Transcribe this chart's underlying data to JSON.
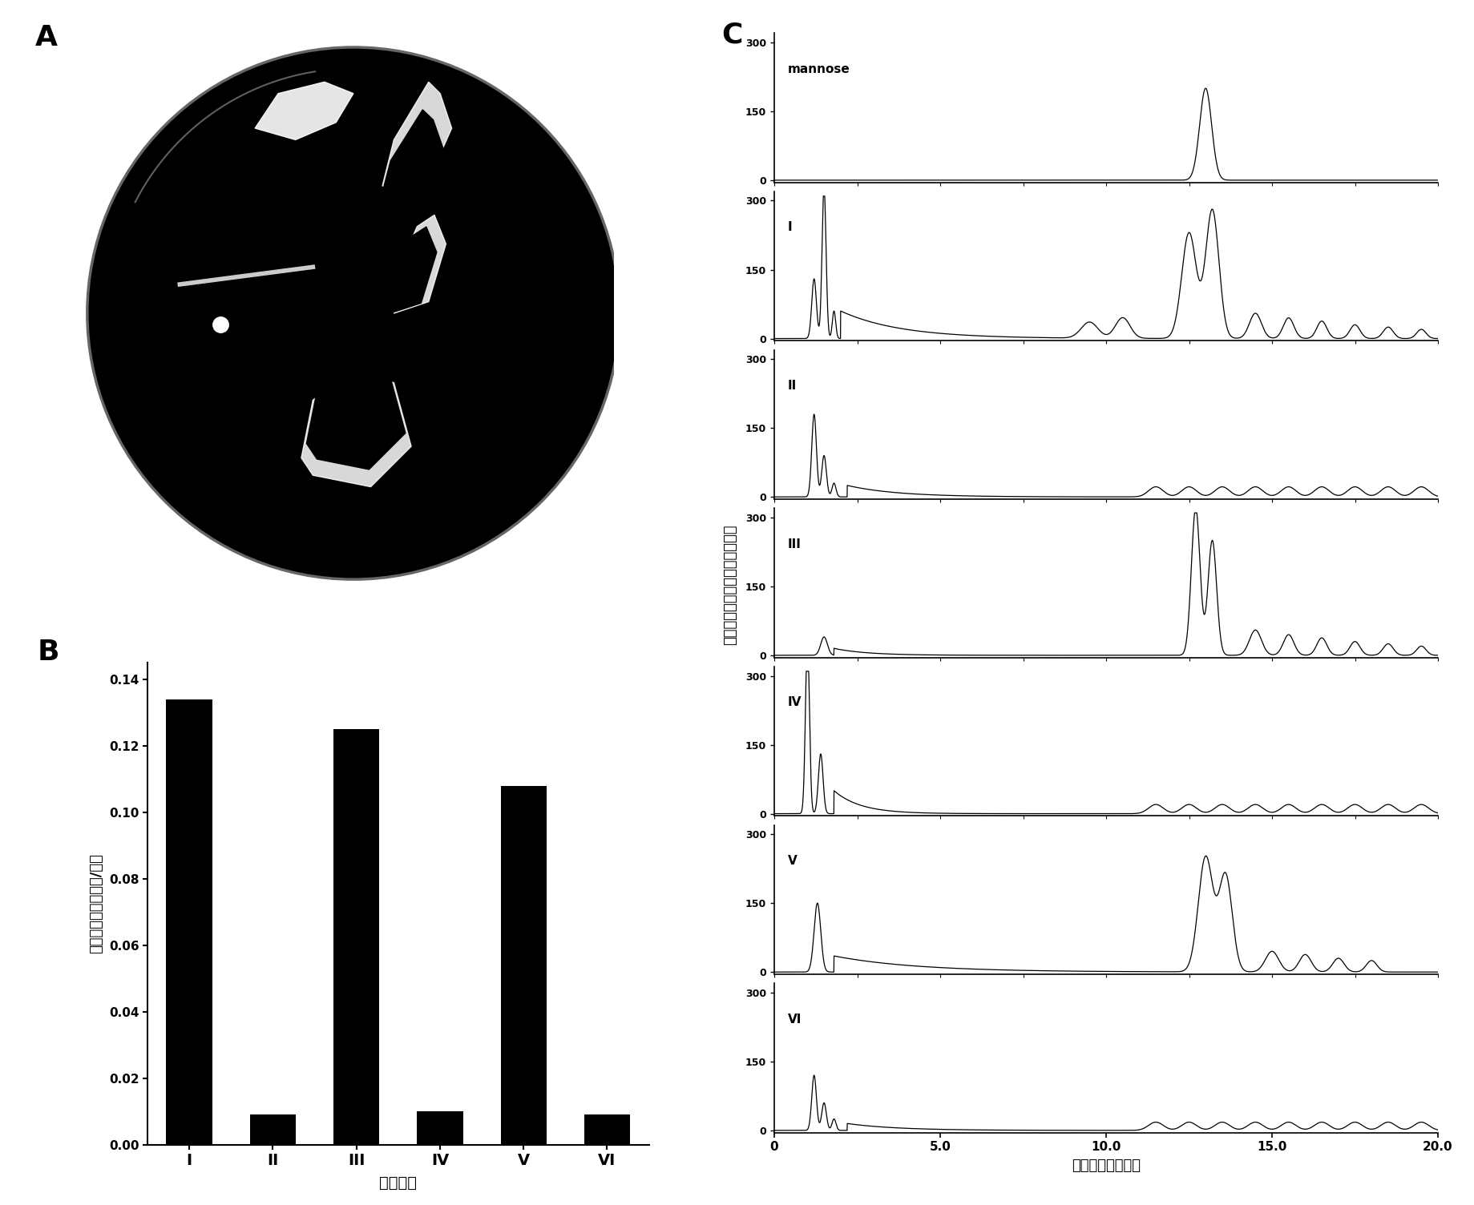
{
  "panel_labels": [
    "A",
    "B",
    "C"
  ],
  "bar_categories": [
    "I",
    "II",
    "III",
    "IV",
    "V",
    "VI"
  ],
  "bar_values": [
    0.134,
    0.009,
    0.125,
    0.01,
    0.108,
    0.009
  ],
  "bar_color": "#000000",
  "bar_ylabel": "胞外多糖的含量（克/升）",
  "bar_xlabel": "各株菌株",
  "bar_ylim": [
    0,
    0.145
  ],
  "bar_yticks": [
    0,
    0.02,
    0.04,
    0.06,
    0.08,
    0.1,
    0.12,
    0.14
  ],
  "chrom_ylabel": "甘露糖基组分的检测（纳库伦）",
  "chrom_xlabel": "洗脱时间（分钟）",
  "chrom_xlim": [
    0,
    20
  ],
  "chrom_xticks": [
    0,
    5.0,
    10.0,
    15.0,
    20.0
  ],
  "chrom_xticklabels": [
    "0",
    "5.0",
    "10.0",
    "15.0",
    "20.0"
  ],
  "chrom_ylim": [
    0,
    300
  ],
  "chrom_yticks": [
    0,
    150,
    300
  ],
  "chrom_labels": [
    "mannose",
    "I",
    "II",
    "III",
    "IV",
    "V",
    "VI"
  ],
  "background_color": "#ffffff"
}
